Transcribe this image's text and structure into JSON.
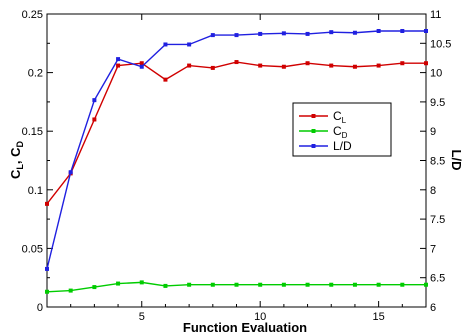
{
  "chart_data": {
    "type": "line",
    "title": "",
    "xlabel": "Function Evaluation",
    "ylabel_left_main": "C",
    "ylabel_left_sub1": "L",
    "ylabel_left_sep": ", ",
    "ylabel_left_main2": "C",
    "ylabel_left_sub2": "D",
    "ylabel_right": "L/D",
    "xlim": [
      1,
      17
    ],
    "ylim_left": [
      0,
      0.25
    ],
    "ylim_right": [
      6,
      11
    ],
    "x_ticks": [
      5,
      10,
      15
    ],
    "y_left_ticks": [
      0,
      0.05,
      0.1,
      0.15,
      0.2,
      0.25
    ],
    "y_right_ticks": [
      6,
      6.5,
      7,
      7.5,
      8,
      8.5,
      9,
      9.5,
      10,
      10.5,
      11
    ],
    "grid": false,
    "legend_position": "right",
    "x": [
      1,
      2,
      3,
      4,
      5,
      6,
      7,
      8,
      9,
      10,
      11,
      12,
      13,
      14,
      15,
      16,
      17
    ],
    "series": [
      {
        "name": "C",
        "name_sub": "L",
        "axis": "left",
        "color": "#d00000",
        "values": [
          0.088,
          0.114,
          0.16,
          0.206,
          0.208,
          0.194,
          0.206,
          0.204,
          0.209,
          0.206,
          0.205,
          0.208,
          0.206,
          0.205,
          0.206,
          0.208,
          0.208
        ]
      },
      {
        "name": "C",
        "name_sub": "D",
        "axis": "left",
        "color": "#00cc00",
        "values": [
          0.013,
          0.014,
          0.017,
          0.02,
          0.021,
          0.018,
          0.019,
          0.019,
          0.019,
          0.019,
          0.019,
          0.019,
          0.019,
          0.019,
          0.019,
          0.019,
          0.019
        ]
      },
      {
        "name": "L/D",
        "name_sub": "",
        "axis": "right",
        "color": "#2020e0",
        "values": [
          6.65,
          8.3,
          9.53,
          10.23,
          10.1,
          10.48,
          10.48,
          10.64,
          10.64,
          10.66,
          10.67,
          10.66,
          10.69,
          10.68,
          10.71,
          10.71,
          10.71
        ]
      }
    ]
  }
}
